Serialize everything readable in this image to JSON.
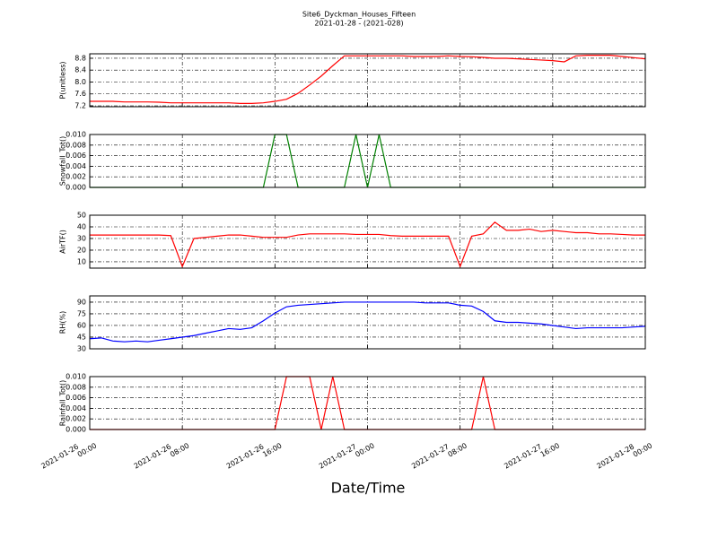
{
  "title": "Site6_Dyckman_Houses_Fifteen",
  "subtitle": "2021-01-28 - (2021-028)",
  "x_label": "Date/Time",
  "chart_data": [
    {
      "type": "line",
      "y_label": "P(unitless)",
      "color": "#ff0000",
      "grid": true,
      "xlim": [
        "2021-01-26 00:00",
        "2021-01-28 00:00"
      ],
      "xticks": [
        "2021-01-26 00:00",
        "2021-01-26 08:00",
        "2021-01-26 16:00",
        "2021-01-27 00:00",
        "2021-01-27 08:00",
        "2021-01-27 16:00",
        "2021-01-28 00:00"
      ],
      "ylim": [
        7.17,
        8.95
      ],
      "yticks": [
        7.2,
        7.6,
        {
          "value": 8,
          "label": "8.0"
        },
        8.4,
        8.8
      ],
      "x": [
        "2021-01-26 00:00",
        "2021-01-26 01:00",
        "2021-01-26 02:00",
        "2021-01-26 03:00",
        "2021-01-26 04:00",
        "2021-01-26 05:00",
        "2021-01-26 06:00",
        "2021-01-26 07:00",
        "2021-01-26 08:00",
        "2021-01-26 09:00",
        "2021-01-26 10:00",
        "2021-01-26 11:00",
        "2021-01-26 12:00",
        "2021-01-26 13:00",
        "2021-01-26 14:00",
        "2021-01-26 15:00",
        "2021-01-26 16:00",
        "2021-01-26 17:00",
        "2021-01-26 18:00",
        "2021-01-26 19:00",
        "2021-01-26 20:00",
        "2021-01-26 21:00",
        "2021-01-26 22:00",
        "2021-01-26 23:00",
        "2021-01-27 00:00",
        "2021-01-27 01:00",
        "2021-01-27 02:00",
        "2021-01-27 03:00",
        "2021-01-27 04:00",
        "2021-01-27 05:00",
        "2021-01-27 06:00",
        "2021-01-27 07:00",
        "2021-01-27 08:00",
        "2021-01-27 09:00",
        "2021-01-27 10:00",
        "2021-01-27 11:00",
        "2021-01-27 12:00",
        "2021-01-27 13:00",
        "2021-01-27 14:00",
        "2021-01-27 15:00",
        "2021-01-27 16:00",
        "2021-01-27 17:00",
        "2021-01-27 18:00",
        "2021-01-27 19:00",
        "2021-01-27 20:00",
        "2021-01-27 21:00",
        "2021-01-27 22:00",
        "2021-01-27 23:00",
        "2021-01-28 00:00"
      ],
      "values": [
        7.35,
        7.35,
        7.35,
        7.33,
        7.33,
        7.33,
        7.32,
        7.3,
        7.3,
        7.3,
        7.3,
        7.3,
        7.3,
        7.28,
        7.28,
        7.3,
        7.35,
        7.42,
        7.62,
        7.9,
        8.2,
        8.55,
        8.88,
        8.88,
        8.88,
        8.88,
        8.88,
        8.88,
        8.86,
        8.86,
        8.86,
        8.88,
        8.86,
        8.85,
        8.83,
        8.8,
        8.8,
        8.78,
        8.76,
        8.74,
        8.72,
        8.68,
        8.88,
        8.9,
        8.9,
        8.9,
        8.86,
        8.82,
        8.78
      ]
    },
    {
      "type": "line",
      "y_label": "Snowfall_Tot()",
      "color": "#008000",
      "grid": true,
      "xlim": [
        "2021-01-26 00:00",
        "2021-01-28 00:00"
      ],
      "xticks": [
        "2021-01-26 00:00",
        "2021-01-26 08:00",
        "2021-01-26 16:00",
        "2021-01-27 00:00",
        "2021-01-27 08:00",
        "2021-01-27 16:00",
        "2021-01-28 00:00"
      ],
      "ylim": [
        0,
        0.01
      ],
      "yticks": [
        {
          "value": 0,
          "label": "0.000"
        },
        {
          "value": 0.002,
          "label": "0.002"
        },
        {
          "value": 0.004,
          "label": "0.004"
        },
        {
          "value": 0.006,
          "label": "0.006"
        },
        {
          "value": 0.008,
          "label": "0.008"
        },
        {
          "value": 0.01,
          "label": "0.010"
        }
      ],
      "x": [
        "2021-01-26 00:00",
        "2021-01-26 01:00",
        "2021-01-26 02:00",
        "2021-01-26 03:00",
        "2021-01-26 04:00",
        "2021-01-26 05:00",
        "2021-01-26 06:00",
        "2021-01-26 07:00",
        "2021-01-26 08:00",
        "2021-01-26 09:00",
        "2021-01-26 10:00",
        "2021-01-26 11:00",
        "2021-01-26 12:00",
        "2021-01-26 13:00",
        "2021-01-26 14:00",
        "2021-01-26 15:00",
        "2021-01-26 16:00",
        "2021-01-26 17:00",
        "2021-01-26 18:00",
        "2021-01-26 19:00",
        "2021-01-26 20:00",
        "2021-01-26 21:00",
        "2021-01-26 22:00",
        "2021-01-26 23:00",
        "2021-01-27 00:00",
        "2021-01-27 01:00",
        "2021-01-27 02:00",
        "2021-01-27 03:00",
        "2021-01-27 04:00",
        "2021-01-27 05:00",
        "2021-01-27 06:00",
        "2021-01-27 07:00",
        "2021-01-27 08:00",
        "2021-01-27 09:00",
        "2021-01-27 10:00",
        "2021-01-27 11:00",
        "2021-01-27 12:00",
        "2021-01-27 13:00",
        "2021-01-27 14:00",
        "2021-01-27 15:00",
        "2021-01-27 16:00",
        "2021-01-27 17:00",
        "2021-01-27 18:00",
        "2021-01-27 19:00",
        "2021-01-27 20:00",
        "2021-01-27 21:00",
        "2021-01-27 22:00",
        "2021-01-27 23:00",
        "2021-01-28 00:00"
      ],
      "values": [
        0,
        0,
        0,
        0,
        0,
        0,
        0,
        0,
        0,
        0,
        0,
        0,
        0,
        0,
        0,
        0,
        0.01,
        0.01,
        0,
        0,
        0,
        0,
        0,
        0.01,
        0,
        0.01,
        0,
        0,
        0,
        0,
        0,
        0,
        0,
        0,
        0,
        0,
        0,
        0,
        0,
        0,
        0,
        0,
        0,
        0,
        0,
        0,
        0,
        0,
        0
      ]
    },
    {
      "type": "line",
      "y_label": "AirTF()",
      "color": "#ff0000",
      "grid": true,
      "xlim": [
        "2021-01-26 00:00",
        "2021-01-28 00:00"
      ],
      "xticks": [
        "2021-01-26 00:00",
        "2021-01-26 08:00",
        "2021-01-26 16:00",
        "2021-01-27 00:00",
        "2021-01-27 08:00",
        "2021-01-27 16:00",
        "2021-01-28 00:00"
      ],
      "ylim": [
        4.6,
        50
      ],
      "yticks": [
        10,
        20,
        30,
        40,
        50
      ],
      "x": [
        "2021-01-26 00:00",
        "2021-01-26 01:00",
        "2021-01-26 02:00",
        "2021-01-26 03:00",
        "2021-01-26 04:00",
        "2021-01-26 05:00",
        "2021-01-26 06:00",
        "2021-01-26 07:00",
        "2021-01-26 08:00",
        "2021-01-26 09:00",
        "2021-01-26 10:00",
        "2021-01-26 11:00",
        "2021-01-26 12:00",
        "2021-01-26 13:00",
        "2021-01-26 14:00",
        "2021-01-26 15:00",
        "2021-01-26 16:00",
        "2021-01-26 17:00",
        "2021-01-26 18:00",
        "2021-01-26 19:00",
        "2021-01-26 20:00",
        "2021-01-26 21:00",
        "2021-01-26 22:00",
        "2021-01-26 23:00",
        "2021-01-27 00:00",
        "2021-01-27 01:00",
        "2021-01-27 02:00",
        "2021-01-27 03:00",
        "2021-01-27 04:00",
        "2021-01-27 05:00",
        "2021-01-27 06:00",
        "2021-01-27 07:00",
        "2021-01-27 08:00",
        "2021-01-27 09:00",
        "2021-01-27 10:00",
        "2021-01-27 11:00",
        "2021-01-27 12:00",
        "2021-01-27 13:00",
        "2021-01-27 14:00",
        "2021-01-27 15:00",
        "2021-01-27 16:00",
        "2021-01-27 17:00",
        "2021-01-27 18:00",
        "2021-01-27 19:00",
        "2021-01-27 20:00",
        "2021-01-27 21:00",
        "2021-01-27 22:00",
        "2021-01-27 23:00",
        "2021-01-28 00:00"
      ],
      "values": [
        33,
        33,
        33,
        33,
        33,
        33,
        33,
        32.5,
        6,
        30,
        31,
        32,
        33,
        33,
        32,
        31,
        31,
        31,
        33,
        34,
        34,
        34,
        34,
        33.5,
        33.5,
        33.5,
        32.5,
        32,
        32,
        32,
        32,
        32,
        6,
        32,
        34,
        44,
        37,
        37,
        38,
        36,
        37,
        36,
        35,
        35,
        34,
        34,
        33.5,
        33,
        33
      ]
    },
    {
      "type": "line",
      "y_label": "RH(%)",
      "color": "#0000ff",
      "grid": true,
      "xlim": [
        "2021-01-26 00:00",
        "2021-01-28 00:00"
      ],
      "xticks": [
        "2021-01-26 00:00",
        "2021-01-26 08:00",
        "2021-01-26 16:00",
        "2021-01-27 00:00",
        "2021-01-27 08:00",
        "2021-01-27 16:00",
        "2021-01-28 00:00"
      ],
      "ylim": [
        30,
        98
      ],
      "yticks": [
        30,
        45,
        60,
        75,
        90
      ],
      "x": [
        "2021-01-26 00:00",
        "2021-01-26 01:00",
        "2021-01-26 02:00",
        "2021-01-26 03:00",
        "2021-01-26 04:00",
        "2021-01-26 05:00",
        "2021-01-26 06:00",
        "2021-01-26 07:00",
        "2021-01-26 08:00",
        "2021-01-26 09:00",
        "2021-01-26 10:00",
        "2021-01-26 11:00",
        "2021-01-26 12:00",
        "2021-01-26 13:00",
        "2021-01-26 14:00",
        "2021-01-26 15:00",
        "2021-01-26 16:00",
        "2021-01-26 17:00",
        "2021-01-26 18:00",
        "2021-01-26 19:00",
        "2021-01-26 20:00",
        "2021-01-26 21:00",
        "2021-01-26 22:00",
        "2021-01-26 23:00",
        "2021-01-27 00:00",
        "2021-01-27 01:00",
        "2021-01-27 02:00",
        "2021-01-27 03:00",
        "2021-01-27 04:00",
        "2021-01-27 05:00",
        "2021-01-27 06:00",
        "2021-01-27 07:00",
        "2021-01-27 08:00",
        "2021-01-27 09:00",
        "2021-01-27 10:00",
        "2021-01-27 11:00",
        "2021-01-27 12:00",
        "2021-01-27 13:00",
        "2021-01-27 14:00",
        "2021-01-27 15:00",
        "2021-01-27 16:00",
        "2021-01-27 17:00",
        "2021-01-27 18:00",
        "2021-01-27 19:00",
        "2021-01-27 20:00",
        "2021-01-27 21:00",
        "2021-01-27 22:00",
        "2021-01-27 23:00",
        "2021-01-28 00:00"
      ],
      "values": [
        43,
        44,
        40,
        39,
        40,
        39,
        41,
        43,
        45,
        47,
        50,
        53,
        56,
        55,
        57,
        66,
        76,
        84,
        86,
        87,
        88,
        89,
        90,
        90,
        90,
        90,
        90,
        90,
        90,
        89,
        89,
        89,
        86,
        85,
        78,
        66,
        64,
        64,
        63,
        62,
        60,
        58,
        56,
        57,
        57,
        57,
        57,
        58,
        59
      ]
    },
    {
      "type": "line",
      "y_label": "Rainfall_Tot()",
      "color": "#ff0000",
      "grid": true,
      "xlim": [
        "2021-01-26 00:00",
        "2021-01-28 00:00"
      ],
      "xticks": [
        "2021-01-26 00:00",
        "2021-01-26 08:00",
        "2021-01-26 16:00",
        "2021-01-27 00:00",
        "2021-01-27 08:00",
        "2021-01-27 16:00",
        "2021-01-28 00:00"
      ],
      "ylim": [
        0,
        0.01
      ],
      "yticks": [
        {
          "value": 0,
          "label": "0.000"
        },
        {
          "value": 0.002,
          "label": "0.002"
        },
        {
          "value": 0.004,
          "label": "0.004"
        },
        {
          "value": 0.006,
          "label": "0.006"
        },
        {
          "value": 0.008,
          "label": "0.008"
        },
        {
          "value": 0.01,
          "label": "0.010"
        }
      ],
      "x": [
        "2021-01-26 00:00",
        "2021-01-26 01:00",
        "2021-01-26 02:00",
        "2021-01-26 03:00",
        "2021-01-26 04:00",
        "2021-01-26 05:00",
        "2021-01-26 06:00",
        "2021-01-26 07:00",
        "2021-01-26 08:00",
        "2021-01-26 09:00",
        "2021-01-26 10:00",
        "2021-01-26 11:00",
        "2021-01-26 12:00",
        "2021-01-26 13:00",
        "2021-01-26 14:00",
        "2021-01-26 15:00",
        "2021-01-26 16:00",
        "2021-01-26 17:00",
        "2021-01-26 18:00",
        "2021-01-26 19:00",
        "2021-01-26 20:00",
        "2021-01-26 21:00",
        "2021-01-26 22:00",
        "2021-01-26 23:00",
        "2021-01-27 00:00",
        "2021-01-27 01:00",
        "2021-01-27 02:00",
        "2021-01-27 03:00",
        "2021-01-27 04:00",
        "2021-01-27 05:00",
        "2021-01-27 06:00",
        "2021-01-27 07:00",
        "2021-01-27 08:00",
        "2021-01-27 09:00",
        "2021-01-27 10:00",
        "2021-01-27 11:00",
        "2021-01-27 12:00",
        "2021-01-27 13:00",
        "2021-01-27 14:00",
        "2021-01-27 15:00",
        "2021-01-27 16:00",
        "2021-01-27 17:00",
        "2021-01-27 18:00",
        "2021-01-27 19:00",
        "2021-01-27 20:00",
        "2021-01-27 21:00",
        "2021-01-27 22:00",
        "2021-01-27 23:00",
        "2021-01-28 00:00"
      ],
      "values": [
        0,
        0,
        0,
        0,
        0,
        0,
        0,
        0,
        0,
        0,
        0,
        0,
        0,
        0,
        0,
        0,
        0,
        0.01,
        0.01,
        0.01,
        0,
        0.01,
        0,
        0,
        0,
        0,
        0,
        0,
        0,
        0,
        0,
        0,
        0,
        0,
        0.01,
        0,
        0,
        0,
        0,
        0,
        0,
        0,
        0,
        0,
        0,
        0,
        0,
        0,
        0
      ]
    }
  ]
}
